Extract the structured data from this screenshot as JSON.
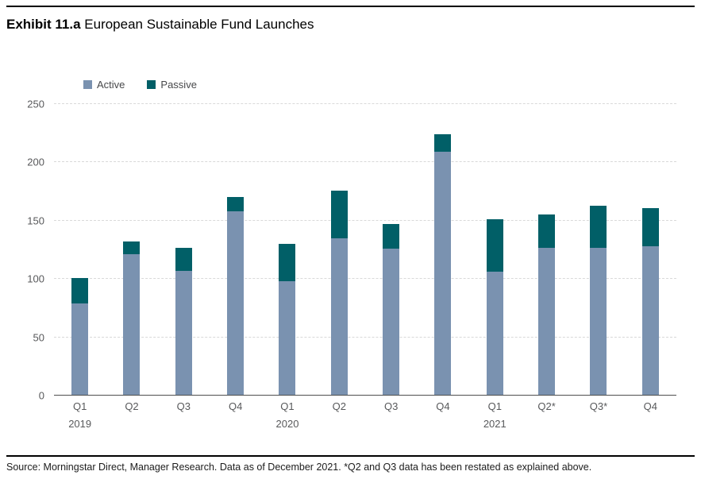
{
  "title": {
    "exhibit": "Exhibit 11.a",
    "text": " European Sustainable Fund Launches"
  },
  "legend": {
    "items": [
      {
        "label": "Active",
        "color": "#7a92b0"
      },
      {
        "label": "Passive",
        "color": "#015f67"
      }
    ]
  },
  "chart_data": {
    "type": "bar",
    "stacked": true,
    "title": "Exhibit 11.a European Sustainable Fund Launches",
    "categories": [
      "Q1",
      "Q2",
      "Q3",
      "Q4",
      "Q1",
      "Q2",
      "Q3",
      "Q4",
      "Q1",
      "Q2*",
      "Q3*",
      "Q4"
    ],
    "year_labels": {
      "0": "2019",
      "4": "2020",
      "8": "2021"
    },
    "series": [
      {
        "name": "Active",
        "color": "#7a92b0",
        "values": [
          79,
          121,
          107,
          158,
          98,
          135,
          126,
          209,
          106,
          127,
          127,
          128
        ]
      },
      {
        "name": "Passive",
        "color": "#015f67",
        "values": [
          22,
          11,
          20,
          12,
          32,
          41,
          21,
          15,
          45,
          28,
          36,
          33
        ]
      }
    ],
    "totals": [
      101,
      132,
      127,
      170,
      130,
      176,
      147,
      224,
      151,
      155,
      163,
      161
    ],
    "ylim": [
      0,
      250
    ],
    "yticks": [
      0,
      50,
      100,
      150,
      200,
      250
    ],
    "grid": "horizontal-dashed",
    "legend_position": "top-left"
  },
  "footer": {
    "source": "Source: Morningstar Direct, Manager Research. Data as of December 2021. *Q2 and Q3 data has been restated as explained above."
  },
  "colors": {
    "active": "#7a92b0",
    "passive": "#015f67",
    "gridline": "#d9d9d9",
    "axis_line": "#4f4f4f",
    "tick_text": "#58595b"
  }
}
